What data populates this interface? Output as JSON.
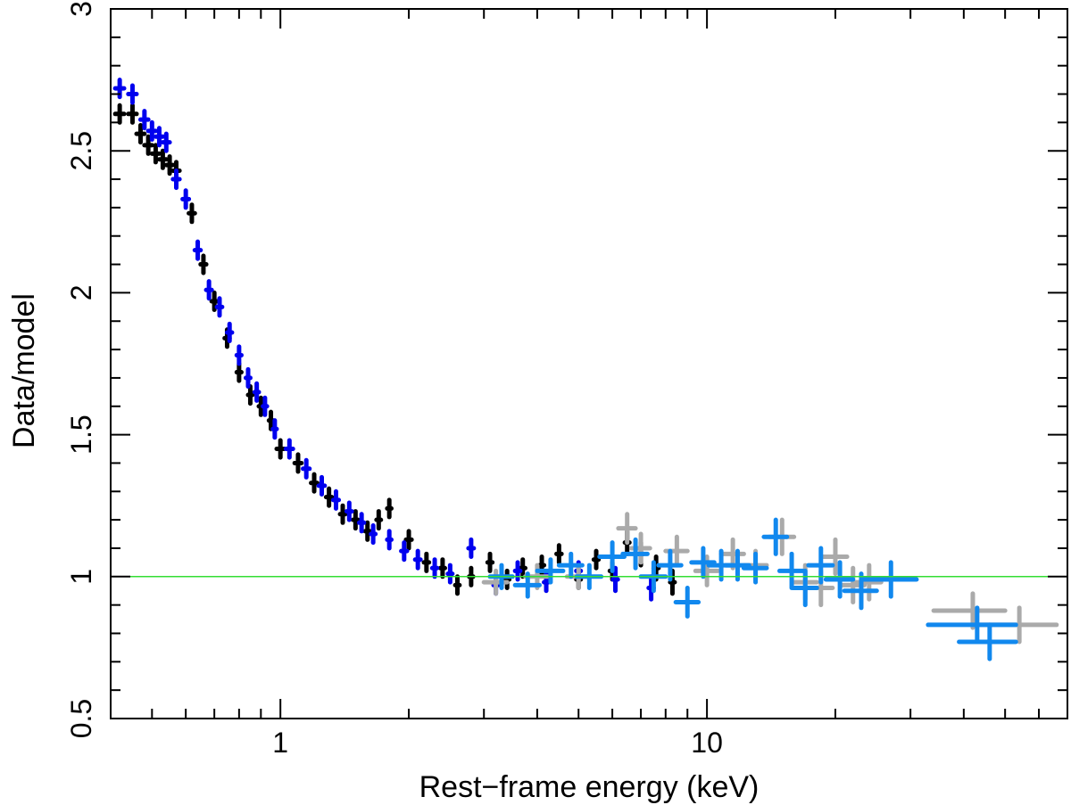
{
  "chart_data": {
    "type": "scatter",
    "title": "",
    "xlabel": "Rest−frame energy (keV)",
    "ylabel": "Data/model",
    "xscale": "log",
    "xlim": [
      0.4,
      70
    ],
    "ylim": [
      0.5,
      3.0
    ],
    "x_tick_labels": [
      {
        "value": 1,
        "label": "1"
      },
      {
        "value": 10,
        "label": "10"
      }
    ],
    "y_tick_labels": [
      {
        "value": 0.5,
        "label": "0.5"
      },
      {
        "value": 1.0,
        "label": "1"
      },
      {
        "value": 1.5,
        "label": "1.5"
      },
      {
        "value": 2.0,
        "label": "2"
      },
      {
        "value": 2.5,
        "label": "2.5"
      },
      {
        "value": 3.0,
        "label": "3"
      }
    ],
    "reference_line": {
      "y": 1.0,
      "color": "#33dd33"
    },
    "grid": false,
    "series": [
      {
        "color": "#000000",
        "points": [
          [
            0.42,
            2.63,
            0.01,
            0.03
          ],
          [
            0.45,
            2.63,
            0.01,
            0.03
          ],
          [
            0.47,
            2.56,
            0.01,
            0.03
          ],
          [
            0.49,
            2.52,
            0.01,
            0.03
          ],
          [
            0.51,
            2.49,
            0.01,
            0.03
          ],
          [
            0.53,
            2.47,
            0.01,
            0.03
          ],
          [
            0.55,
            2.45,
            0.01,
            0.03
          ],
          [
            0.57,
            2.43,
            0.01,
            0.03
          ],
          [
            0.62,
            2.28,
            0.01,
            0.03
          ],
          [
            0.66,
            2.1,
            0.01,
            0.03
          ],
          [
            0.7,
            1.97,
            0.01,
            0.03
          ],
          [
            0.75,
            1.84,
            0.01,
            0.03
          ],
          [
            0.8,
            1.72,
            0.01,
            0.03
          ],
          [
            0.85,
            1.64,
            0.01,
            0.03
          ],
          [
            0.9,
            1.6,
            0.01,
            0.03
          ],
          [
            0.95,
            1.55,
            0.01,
            0.03
          ],
          [
            1.0,
            1.45,
            0.02,
            0.03
          ],
          [
            1.1,
            1.4,
            0.02,
            0.03
          ],
          [
            1.2,
            1.33,
            0.02,
            0.03
          ],
          [
            1.3,
            1.28,
            0.02,
            0.03
          ],
          [
            1.4,
            1.22,
            0.02,
            0.03
          ],
          [
            1.5,
            1.2,
            0.02,
            0.03
          ],
          [
            1.6,
            1.16,
            0.02,
            0.03
          ],
          [
            1.7,
            1.2,
            0.02,
            0.03
          ],
          [
            1.8,
            1.24,
            0.02,
            0.03
          ],
          [
            2.0,
            1.13,
            0.03,
            0.03
          ],
          [
            2.2,
            1.05,
            0.03,
            0.03
          ],
          [
            2.4,
            1.03,
            0.03,
            0.03
          ],
          [
            2.6,
            0.97,
            0.03,
            0.03
          ],
          [
            2.8,
            1.0,
            0.03,
            0.03
          ],
          [
            3.1,
            1.05,
            0.04,
            0.03
          ],
          [
            3.4,
            0.99,
            0.04,
            0.03
          ],
          [
            3.7,
            1.03,
            0.05,
            0.03
          ],
          [
            4.1,
            1.04,
            0.05,
            0.03
          ],
          [
            4.5,
            1.08,
            0.06,
            0.03
          ],
          [
            5.0,
            0.99,
            0.06,
            0.03
          ],
          [
            5.5,
            1.06,
            0.07,
            0.03
          ],
          [
            6.0,
            1.02,
            0.08,
            0.03
          ],
          [
            6.5,
            1.12,
            0.08,
            0.04
          ],
          [
            7.0,
            1.08,
            0.09,
            0.04
          ],
          [
            7.6,
            1.03,
            0.1,
            0.04
          ],
          [
            8.3,
            0.98,
            0.1,
            0.04
          ]
        ]
      },
      {
        "color": "#0000ee",
        "points": [
          [
            0.42,
            2.72,
            0.01,
            0.03
          ],
          [
            0.45,
            2.7,
            0.01,
            0.03
          ],
          [
            0.48,
            2.61,
            0.01,
            0.03
          ],
          [
            0.5,
            2.57,
            0.01,
            0.03
          ],
          [
            0.52,
            2.55,
            0.01,
            0.03
          ],
          [
            0.54,
            2.53,
            0.01,
            0.03
          ],
          [
            0.57,
            2.4,
            0.01,
            0.03
          ],
          [
            0.6,
            2.33,
            0.01,
            0.03
          ],
          [
            0.64,
            2.15,
            0.01,
            0.03
          ],
          [
            0.68,
            2.01,
            0.01,
            0.03
          ],
          [
            0.72,
            1.95,
            0.01,
            0.03
          ],
          [
            0.76,
            1.86,
            0.01,
            0.03
          ],
          [
            0.8,
            1.78,
            0.01,
            0.03
          ],
          [
            0.84,
            1.7,
            0.01,
            0.03
          ],
          [
            0.88,
            1.65,
            0.01,
            0.03
          ],
          [
            0.92,
            1.6,
            0.01,
            0.03
          ],
          [
            0.97,
            1.52,
            0.01,
            0.03
          ],
          [
            1.05,
            1.45,
            0.02,
            0.03
          ],
          [
            1.15,
            1.38,
            0.02,
            0.03
          ],
          [
            1.25,
            1.32,
            0.02,
            0.03
          ],
          [
            1.35,
            1.27,
            0.02,
            0.03
          ],
          [
            1.45,
            1.23,
            0.02,
            0.03
          ],
          [
            1.55,
            1.19,
            0.02,
            0.03
          ],
          [
            1.65,
            1.15,
            0.02,
            0.03
          ],
          [
            1.8,
            1.13,
            0.02,
            0.03
          ],
          [
            1.95,
            1.09,
            0.03,
            0.03
          ],
          [
            2.1,
            1.06,
            0.03,
            0.03
          ],
          [
            2.3,
            1.03,
            0.03,
            0.03
          ],
          [
            2.5,
            1.01,
            0.03,
            0.03
          ],
          [
            2.8,
            1.1,
            0.04,
            0.03
          ],
          [
            3.2,
            0.97,
            0.04,
            0.03
          ],
          [
            3.6,
            1.02,
            0.05,
            0.03
          ],
          [
            4.2,
            0.98,
            0.05,
            0.03
          ],
          [
            5.0,
            1.02,
            0.06,
            0.03
          ],
          [
            6.1,
            0.99,
            0.08,
            0.04
          ],
          [
            7.4,
            0.96,
            0.1,
            0.04
          ]
        ]
      },
      {
        "color": "#aaaaaa",
        "points": [
          [
            3.2,
            0.98,
            0.2,
            0.04
          ],
          [
            4.0,
            1.0,
            0.25,
            0.04
          ],
          [
            5.0,
            1.0,
            0.3,
            0.04
          ],
          [
            6.5,
            1.17,
            0.3,
            0.05
          ],
          [
            7.0,
            1.1,
            0.35,
            0.05
          ],
          [
            8.5,
            1.09,
            0.5,
            0.05
          ],
          [
            10.0,
            1.02,
            0.6,
            0.05
          ],
          [
            11.5,
            1.08,
            0.7,
            0.05
          ],
          [
            13.0,
            1.04,
            0.8,
            0.05
          ],
          [
            15.0,
            1.14,
            1.0,
            0.06
          ],
          [
            17.0,
            0.98,
            1.1,
            0.06
          ],
          [
            18.5,
            0.96,
            1.2,
            0.06
          ],
          [
            20.0,
            1.07,
            1.3,
            0.06
          ],
          [
            22.0,
            0.97,
            1.4,
            0.06
          ],
          [
            24.0,
            0.98,
            1.6,
            0.06
          ],
          [
            42.0,
            0.88,
            8.0,
            0.06
          ],
          [
            54.0,
            0.83,
            12.0,
            0.06
          ]
        ]
      },
      {
        "color": "#1188ee",
        "points": [
          [
            3.3,
            1.0,
            0.2,
            0.04
          ],
          [
            3.8,
            0.97,
            0.25,
            0.04
          ],
          [
            4.3,
            1.02,
            0.3,
            0.04
          ],
          [
            4.8,
            1.04,
            0.3,
            0.04
          ],
          [
            5.3,
            1.0,
            0.35,
            0.04
          ],
          [
            6.0,
            1.07,
            0.4,
            0.05
          ],
          [
            6.8,
            1.08,
            0.45,
            0.05
          ],
          [
            7.5,
            1.0,
            0.5,
            0.05
          ],
          [
            8.2,
            1.04,
            0.5,
            0.05
          ],
          [
            9.0,
            0.91,
            0.55,
            0.05
          ],
          [
            9.8,
            1.05,
            0.6,
            0.05
          ],
          [
            10.8,
            1.04,
            0.7,
            0.05
          ],
          [
            11.8,
            1.04,
            0.75,
            0.05
          ],
          [
            13.0,
            1.03,
            0.8,
            0.05
          ],
          [
            14.5,
            1.14,
            0.9,
            0.06
          ],
          [
            15.8,
            1.02,
            1.0,
            0.06
          ],
          [
            17.0,
            0.96,
            1.1,
            0.06
          ],
          [
            18.5,
            1.04,
            1.2,
            0.06
          ],
          [
            20.5,
            0.99,
            1.5,
            0.06
          ],
          [
            23.0,
            0.95,
            2.0,
            0.06
          ],
          [
            27.0,
            0.99,
            4.0,
            0.06
          ],
          [
            43.0,
            0.83,
            10.0,
            0.06
          ],
          [
            46.0,
            0.77,
            7.0,
            0.06
          ]
        ]
      }
    ]
  }
}
